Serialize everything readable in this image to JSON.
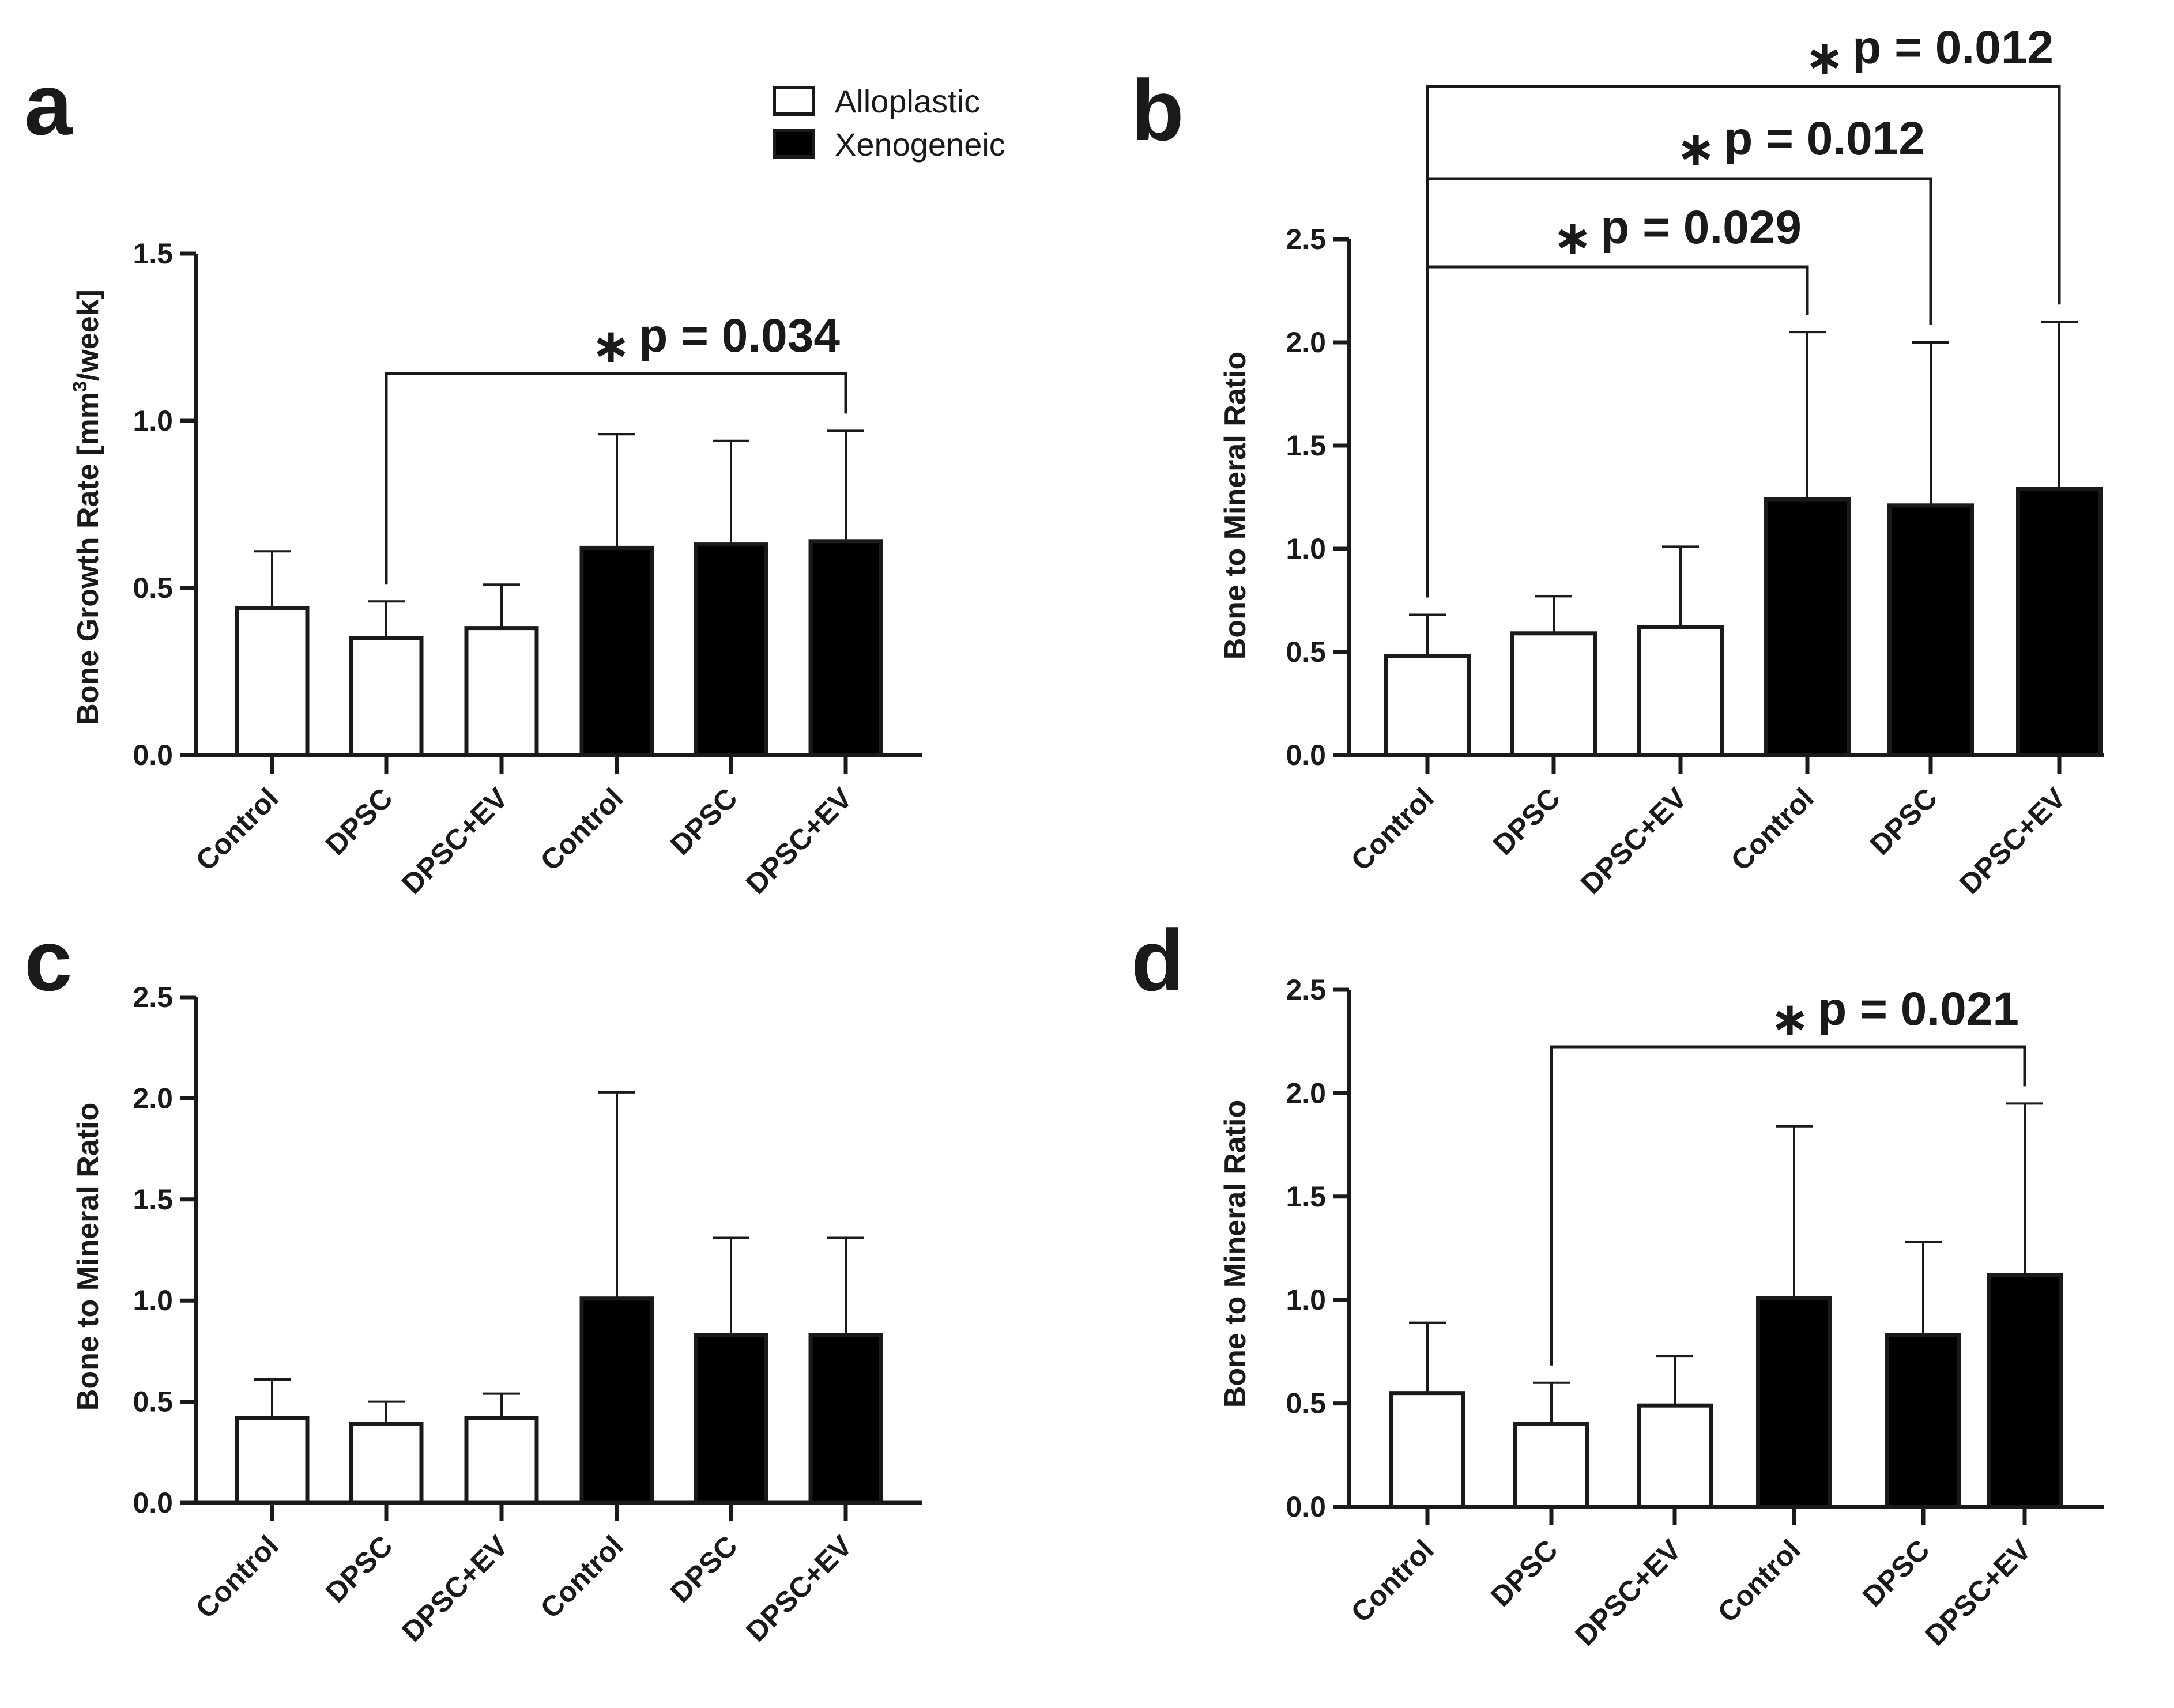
{
  "legend": {
    "entries": [
      {
        "label": "Alloplastic",
        "fill": "#ffffff"
      },
      {
        "label": "Xenogeneic",
        "fill": "#000000"
      }
    ]
  },
  "colors": {
    "alloplastic": "#ffffff",
    "xenogeneic": "#000000",
    "ink": "#1a1a1a"
  },
  "chart_data": [
    {
      "id": "a",
      "letter": "a",
      "type": "bar",
      "ylabel_main": "Bone Growth Rate [mm",
      "ylabel_sup": "3",
      "ylabel_end": "/week]",
      "ylim": [
        0,
        1.5
      ],
      "yticks": [
        "0.0",
        "0.5",
        "1.0",
        "1.5"
      ],
      "categories": [
        "Control",
        "DPSC",
        "DPSC+EV",
        "Control",
        "DPSC",
        "DPSC+EV"
      ],
      "groups": [
        "Alloplastic",
        "Alloplastic",
        "Alloplastic",
        "Xenogeneic",
        "Xenogeneic",
        "Xenogeneic"
      ],
      "values": [
        0.44,
        0.35,
        0.38,
        0.62,
        0.63,
        0.64
      ],
      "error_upper": [
        0.61,
        0.46,
        0.51,
        0.96,
        0.94,
        0.97
      ],
      "significance": [
        {
          "star": "∗",
          "label": "p = 0.034",
          "from": 1,
          "to": 5
        }
      ]
    },
    {
      "id": "b",
      "letter": "b",
      "type": "bar",
      "ylabel_main": "Bone to Mineral Ratio",
      "ylim": [
        0,
        2.5
      ],
      "yticks": [
        "0.0",
        "0.5",
        "1.0",
        "1.5",
        "2.0",
        "2.5"
      ],
      "categories": [
        "Control",
        "DPSC",
        "DPSC+EV",
        "Control",
        "DPSC",
        "DPSC+EV"
      ],
      "groups": [
        "Alloplastic",
        "Alloplastic",
        "Alloplastic",
        "Xenogeneic",
        "Xenogeneic",
        "Xenogeneic"
      ],
      "values": [
        0.48,
        0.59,
        0.62,
        1.24,
        1.21,
        1.29
      ],
      "error_upper": [
        0.68,
        0.77,
        1.01,
        2.05,
        2.0,
        2.1
      ],
      "significance": [
        {
          "star": "∗",
          "label": "p = 0.029",
          "from": 0,
          "to": 3
        },
        {
          "star": "∗",
          "label": "p = 0.012",
          "from": 0,
          "to": 4
        },
        {
          "star": "∗",
          "label": "p = 0.012",
          "from": 0,
          "to": 5
        }
      ]
    },
    {
      "id": "c",
      "letter": "c",
      "type": "bar",
      "ylabel_main": "Bone to Mineral Ratio",
      "ylim": [
        0,
        2.5
      ],
      "yticks": [
        "0.0",
        "0.5",
        "1.0",
        "1.5",
        "2.0",
        "2.5"
      ],
      "categories": [
        "Control",
        "DPSC",
        "DPSC+EV",
        "Control",
        "DPSC",
        "DPSC+EV"
      ],
      "groups": [
        "Alloplastic",
        "Alloplastic",
        "Alloplastic",
        "Xenogeneic",
        "Xenogeneic",
        "Xenogeneic"
      ],
      "values": [
        0.42,
        0.39,
        0.42,
        1.01,
        0.83,
        0.83
      ],
      "error_upper": [
        0.61,
        0.5,
        0.54,
        2.03,
        1.31,
        1.31
      ],
      "significance": []
    },
    {
      "id": "d",
      "letter": "d",
      "type": "bar",
      "ylabel_main": "Bone to Mineral Ratio",
      "ylim": [
        0,
        2.5
      ],
      "yticks": [
        "0.0",
        "0.5",
        "1.0",
        "1.5",
        "2.0",
        "2.5"
      ],
      "categories": [
        "Control",
        "DPSC",
        "DPSC+EV",
        "Control",
        "DPSC",
        "DPSC+EV"
      ],
      "groups": [
        "Alloplastic",
        "Alloplastic",
        "Alloplastic",
        "Xenogeneic",
        "Xenogeneic",
        "Xenogeneic"
      ],
      "values": [
        0.55,
        0.4,
        0.49,
        1.01,
        0.83,
        1.12
      ],
      "error_upper": [
        0.89,
        0.6,
        0.73,
        1.84,
        1.28,
        1.95
      ],
      "significance": [
        {
          "star": "∗",
          "label": "p = 0.021",
          "from": 1,
          "to": 5
        }
      ]
    }
  ]
}
